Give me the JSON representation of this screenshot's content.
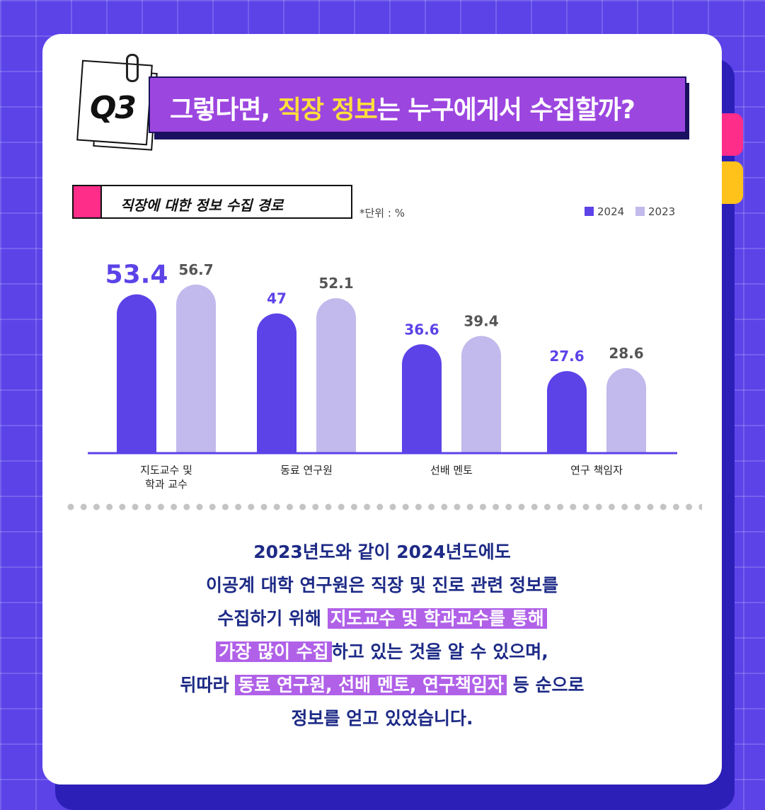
{
  "header": {
    "q_label": "Q3",
    "title_pre": "그렇다면, ",
    "title_highlight": "직장 정보",
    "title_post": "는 누구에게서 수집할까?"
  },
  "chart_box_label": "직장에 대한 정보 수집 경로",
  "unit": "*단위 : %",
  "legend": [
    {
      "name": "2024",
      "color": "#5b43e8"
    },
    {
      "name": "2023",
      "color": "#c2b9ec"
    }
  ],
  "chart_data": {
    "type": "bar",
    "categories": [
      "지도교수 및\n학과 교수",
      "동료 연구원",
      "선배 멘토",
      "연구 책임자"
    ],
    "series": [
      {
        "name": "2024",
        "values": [
          53.4,
          47,
          36.6,
          27.6
        ],
        "labels": [
          "53.4",
          "47",
          "36.6",
          "27.6"
        ],
        "color": "#5b43e8"
      },
      {
        "name": "2023",
        "values": [
          56.7,
          52.1,
          39.4,
          28.6
        ],
        "labels": [
          "56.7",
          "52.1",
          "39.4",
          "28.6"
        ],
        "color": "#c2b9ec"
      }
    ],
    "ylim": [
      0,
      60
    ],
    "xlabel": "",
    "ylabel": "",
    "grid": false,
    "legend_position": "top-right"
  },
  "summary": {
    "l1": "2023년도와 같이 2024년도에도",
    "l2": "이공계 대학 연구원은 직장 및 진로 관련 정보를",
    "l3_pre": "수집하기 위해 ",
    "l3_hl": "지도교수 및 학과교수를 통해",
    "l4_hl": "가장 많이 수집",
    "l4_post": "하고 있는 것을 알 수 있으며,",
    "l5_pre": "뒤따라 ",
    "l5_hl": "동료 연구원, 선배 멘토, 연구책임자",
    "l5_post": " 등 순으로",
    "l6": "정보를 얻고 있었습니다."
  }
}
